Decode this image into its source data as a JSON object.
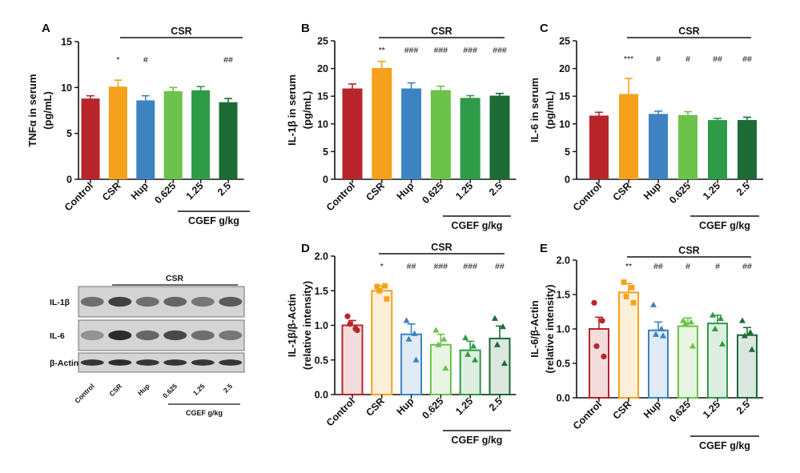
{
  "colors": {
    "control": "#b8262c",
    "csr": "#f5a11c",
    "hup": "#3d83c2",
    "d0625": "#6cc24a",
    "d125": "#2f9a48",
    "d25": "#1d6b35",
    "axis": "#111111"
  },
  "blot": {
    "csr_label": "CSR",
    "rows": [
      "IL-1β",
      "IL-6",
      "β-Actin"
    ],
    "lanes": [
      "Control",
      "CSR",
      "Hup",
      "0.625",
      "1.25",
      "2.5"
    ],
    "group_label": "CGEF g/kg",
    "band_intensity": [
      [
        0.55,
        0.8,
        0.55,
        0.6,
        0.5,
        0.65
      ],
      [
        0.35,
        0.9,
        0.6,
        0.75,
        0.55,
        0.5
      ],
      [
        0.85,
        0.9,
        0.85,
        0.85,
        0.85,
        0.85
      ]
    ]
  },
  "chart_data": [
    {
      "panel": "A",
      "type": "bar",
      "ylabel_lines": [
        "TNFα in serum",
        "(pg/mL)"
      ],
      "categories": [
        "Control",
        "CSR",
        "Hup",
        "0.625",
        "1.25",
        "2.5"
      ],
      "values": [
        8.8,
        10.1,
        8.6,
        9.6,
        9.7,
        8.4
      ],
      "errors": [
        0.3,
        0.7,
        0.5,
        0.4,
        0.4,
        0.4
      ],
      "ylim": [
        0,
        15
      ],
      "yticks": [
        "0",
        "5",
        "10",
        "15"
      ],
      "significance": [
        "",
        "*",
        "#",
        "",
        "",
        "##"
      ],
      "group_label": "CSR",
      "dose_label": "CGEF g/kg",
      "style": "filled"
    },
    {
      "panel": "B",
      "type": "bar",
      "ylabel_lines": [
        "IL-1β in serum",
        "(pg/mL)"
      ],
      "categories": [
        "Control",
        "CSR",
        "Hup",
        "0.625",
        "1.25",
        "2.5"
      ],
      "values": [
        16.4,
        20.1,
        16.4,
        16.1,
        14.7,
        15.1
      ],
      "errors": [
        0.8,
        1.2,
        1.0,
        0.7,
        0.4,
        0.4
      ],
      "ylim": [
        0,
        25
      ],
      "yticks": [
        "0",
        "5",
        "10",
        "15",
        "20",
        "25"
      ],
      "significance": [
        "",
        "**",
        "###",
        "###",
        "###",
        "###"
      ],
      "group_label": "CSR",
      "dose_label": "CGEF g/kg",
      "style": "filled"
    },
    {
      "panel": "C",
      "type": "bar",
      "ylabel_lines": [
        "IL-6 in serum",
        "(pg/mL)"
      ],
      "categories": [
        "Control",
        "CSR",
        "Hup",
        "0.625",
        "1.25",
        "2.5"
      ],
      "values": [
        11.5,
        15.4,
        11.8,
        11.6,
        10.7,
        10.7
      ],
      "errors": [
        0.6,
        2.8,
        0.5,
        0.6,
        0.3,
        0.5
      ],
      "ylim": [
        0,
        25
      ],
      "yticks": [
        "0",
        "5",
        "10",
        "15",
        "20",
        "25"
      ],
      "significance": [
        "",
        "***",
        "#",
        "#",
        "##",
        "##"
      ],
      "group_label": "CSR",
      "dose_label": "CGEF g/kg",
      "style": "filled"
    },
    {
      "panel": "D",
      "type": "bar",
      "ylabel_lines": [
        "IL-1β/β-Actin",
        "(relative intensity)"
      ],
      "categories": [
        "Control",
        "CSR",
        "Hup",
        "0.625",
        "1.25",
        "2.5"
      ],
      "values": [
        1.0,
        1.5,
        0.87,
        0.72,
        0.64,
        0.81
      ],
      "errors": [
        0.07,
        0.07,
        0.15,
        0.15,
        0.13,
        0.18
      ],
      "points": [
        [
          1.13,
          0.95,
          1.02,
          0.93
        ],
        [
          1.56,
          1.57,
          1.5,
          1.38
        ],
        [
          1.07,
          0.88,
          0.8,
          0.5
        ],
        [
          0.93,
          0.8,
          0.72,
          0.38
        ],
        [
          0.82,
          0.7,
          0.58,
          0.5
        ],
        [
          1.1,
          0.98,
          0.72,
          0.45
        ]
      ],
      "ylim": [
        0,
        2.0
      ],
      "yticks": [
        "0.0",
        "0.5",
        "1.0",
        "1.5",
        "2.0"
      ],
      "significance": [
        "",
        "*",
        "##",
        "###",
        "###",
        "##"
      ],
      "group_label": "CSR",
      "dose_label": "CGEF g/kg",
      "style": "hollow"
    },
    {
      "panel": "E",
      "type": "bar",
      "ylabel_lines": [
        "IL-6/β-Actin",
        "(relative intensity)"
      ],
      "categories": [
        "Control",
        "CSR",
        "Hup",
        "0.625",
        "1.25",
        "2.5"
      ],
      "values": [
        1.0,
        1.53,
        0.98,
        1.04,
        1.08,
        0.91
      ],
      "errors": [
        0.17,
        0.13,
        0.12,
        0.12,
        0.12,
        0.11
      ],
      "points": [
        [
          1.38,
          1.12,
          0.75,
          0.6
        ],
        [
          1.68,
          1.6,
          1.47,
          1.38
        ],
        [
          1.35,
          1.0,
          0.92,
          0.9
        ],
        [
          1.12,
          1.1,
          1.08,
          0.75
        ],
        [
          1.2,
          1.15,
          1.0,
          0.78
        ],
        [
          1.12,
          0.95,
          0.9,
          0.7
        ]
      ],
      "ylim": [
        0,
        2.0
      ],
      "yticks": [
        "0.0",
        "0.5",
        "1.0",
        "1.5",
        "2.0"
      ],
      "significance": [
        "",
        "**",
        "##",
        "#",
        "#",
        "##"
      ],
      "group_label": "CSR",
      "dose_label": "CGEF g/kg",
      "style": "hollow"
    }
  ]
}
